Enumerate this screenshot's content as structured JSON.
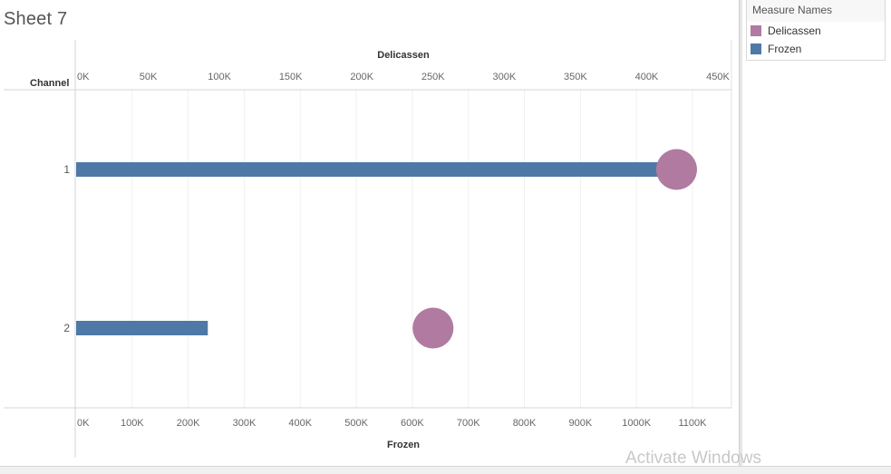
{
  "sheet": {
    "title": "Sheet 7"
  },
  "legend": {
    "title": "Measure Names",
    "items": [
      {
        "label": "Delicassen",
        "color": "#b07aa1"
      },
      {
        "label": "Frozen",
        "color": "#4e79a7"
      }
    ]
  },
  "watermark": "Activate Windows",
  "chart_data": {
    "type": "bar",
    "row_header": "Channel",
    "categories": [
      "1",
      "2"
    ],
    "top_axis": {
      "title": "Delicassen",
      "range": [
        0,
        450000
      ],
      "ticks": [
        0,
        50000,
        100000,
        150000,
        200000,
        250000,
        300000,
        350000,
        400000,
        450000
      ],
      "tick_labels": [
        "0K",
        "50K",
        "100K",
        "150K",
        "200K",
        "250K",
        "300K",
        "350K",
        "400K",
        "450K"
      ]
    },
    "bottom_axis": {
      "title": "Frozen",
      "range": [
        0,
        1180000
      ],
      "ticks": [
        0,
        100000,
        200000,
        300000,
        400000,
        500000,
        600000,
        700000,
        800000,
        900000,
        1000000,
        1100000
      ],
      "tick_labels": [
        "0K",
        "100K",
        "200K",
        "300K",
        "400K",
        "500K",
        "600K",
        "700K",
        "800K",
        "900K",
        "1000K",
        "1100K"
      ]
    },
    "series": [
      {
        "name": "Frozen",
        "mark": "bar",
        "axis": "bottom",
        "color": "#4e79a7",
        "values": [
          1060000,
          235000
        ]
      },
      {
        "name": "Delicassen",
        "mark": "circle",
        "axis": "top",
        "color": "#b07aa1",
        "values": [
          421000,
          250000
        ]
      }
    ],
    "grid": true
  }
}
